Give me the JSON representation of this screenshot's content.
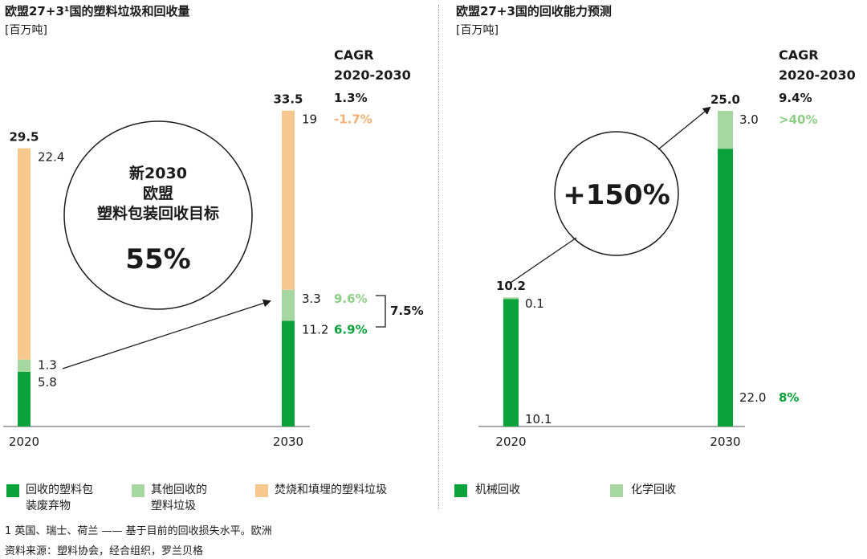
{
  "colors": {
    "recycled_packaging": "#0aa23a",
    "other_recycled": "#a7d7a0",
    "incinerated_landfill": "#f7c88e",
    "mechanical": "#0aa23a",
    "chemical": "#a7d7a0",
    "neg_text": "#f0b070",
    "pos_light_text": "#8fce86",
    "pos_dark_text": "#0aa23a"
  },
  "left": {
    "title": "欧盟27+3¹国的塑料垃圾和回收量",
    "unit": "[百万吨]",
    "cagr_header": [
      "CAGR",
      "2020-2030"
    ],
    "cagr_total": "1.3%",
    "circle_lines": [
      "新2030",
      "欧盟",
      "塑料包装回收目标"
    ],
    "circle_value": "55%",
    "bracket_label": "7.5%",
    "years": [
      "2020",
      "2030"
    ]
  },
  "right": {
    "title": "欧盟27+3国的回收能力预测",
    "unit": "[百万吨]",
    "cagr_header": [
      "CAGR",
      "2020-2030"
    ],
    "cagr_total": "9.4%",
    "circle_value": "+150%",
    "years": [
      "2020",
      "2030"
    ]
  },
  "chart_data": [
    {
      "type": "bar",
      "stacked": true,
      "title": "欧盟27+3¹国的塑料垃圾和回收量",
      "ylabel": "[百万吨]",
      "categories": [
        "2020",
        "2030"
      ],
      "totals": [
        "29.5",
        "33.5"
      ],
      "series": [
        {
          "name": "回收的塑料包装废弃物",
          "values": [
            5.8,
            11.2
          ],
          "labels": [
            "5.8",
            "11.2"
          ],
          "cagr": "6.9%"
        },
        {
          "name": "其他回收的塑料垃圾",
          "values": [
            1.3,
            3.3
          ],
          "labels": [
            "1.3",
            "3.3"
          ],
          "cagr": "9.6%"
        },
        {
          "name": "焚烧和填埋的塑料垃圾",
          "values": [
            22.4,
            19
          ],
          "labels": [
            "22.4",
            "19"
          ],
          "cagr": "-1.7%"
        }
      ],
      "legend": [
        "回收的塑料包装废弃物",
        "其他回收的塑料垃圾",
        "焚烧和填埋的塑料垃圾"
      ]
    },
    {
      "type": "bar",
      "stacked": true,
      "title": "欧盟27+3国的回收能力预测",
      "ylabel": "[百万吨]",
      "categories": [
        "2020",
        "2030"
      ],
      "totals": [
        "10.2",
        "25.0"
      ],
      "series": [
        {
          "name": "机械回收",
          "values": [
            10.1,
            22.0
          ],
          "labels": [
            "10.1",
            "22.0"
          ],
          "cagr": "8%"
        },
        {
          "name": "化学回收",
          "values": [
            0.1,
            3.0
          ],
          "labels": [
            "0.1",
            "3.0"
          ],
          "cagr": ">40%"
        }
      ],
      "legend": [
        "机械回收",
        "化学回收"
      ]
    }
  ],
  "legend_left": [
    {
      "lines": [
        "回收的塑料包",
        "装废弃物"
      ]
    },
    {
      "lines": [
        "其他回收的",
        "塑料垃圾"
      ]
    },
    {
      "lines": [
        "焚烧和填埋的塑料垃圾"
      ]
    }
  ],
  "legend_right": [
    {
      "lines": [
        "机械回收"
      ]
    },
    {
      "lines": [
        "化学回收"
      ]
    }
  ],
  "footnote": "1 英国、瑞士、荷兰 —— 基于目前的回收损失水平。欧洲",
  "source": "资料来源：塑料协会，经合组织，罗兰贝格"
}
